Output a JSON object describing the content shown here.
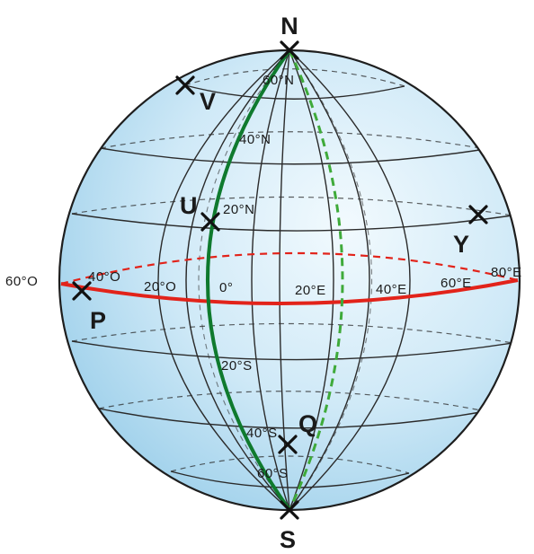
{
  "colors": {
    "equator": "#e2231a",
    "meridian_0": "#0f7a2e",
    "meridian_20e": "#3faa3a",
    "grid": "#2b2b2b",
    "sphere_light": "#eef8fd",
    "sphere_dark": "#a9d6ee"
  },
  "poles": {
    "north": "N",
    "south": "S"
  },
  "latitude_labels": {
    "n60": "60°N",
    "n40": "40°N",
    "n20": "20°N",
    "s20": "20°S",
    "s40": "40°S",
    "s60": "60°S"
  },
  "longitude_labels": {
    "w60": "60°O",
    "w40": "40°O",
    "w20": "20°O",
    "zero": "0°",
    "e20": "20°E",
    "e40": "40°E",
    "e60": "60°E",
    "e80": "80°E"
  },
  "points": {
    "p": "P",
    "q": "Q",
    "u": "U",
    "v": "V",
    "y": "Y"
  }
}
